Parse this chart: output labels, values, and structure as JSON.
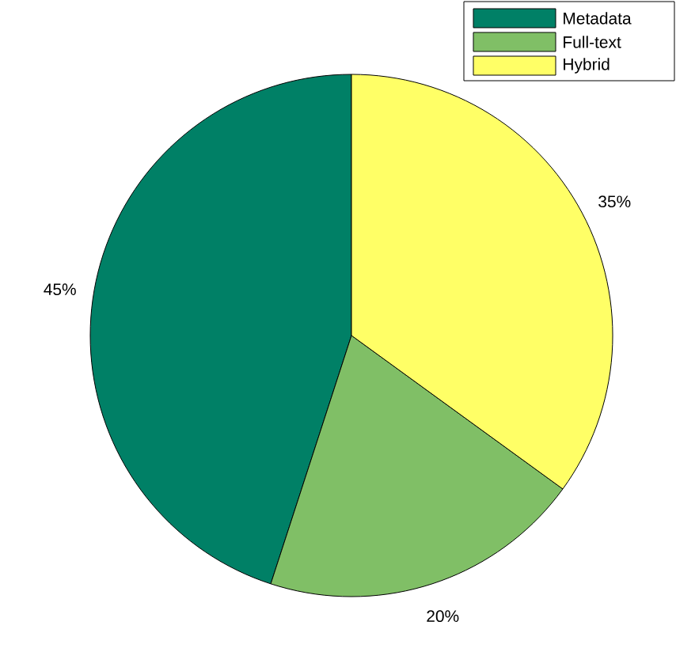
{
  "chart_data": {
    "type": "pie",
    "categories": [
      "Metadata",
      "Full-text",
      "Hybrid"
    ],
    "values": [
      45,
      20,
      35
    ],
    "value_labels": [
      "45%",
      "20%",
      "35%"
    ],
    "colors": [
      "#008066",
      "#80bf66",
      "#ffff66"
    ],
    "legend": "top right"
  }
}
